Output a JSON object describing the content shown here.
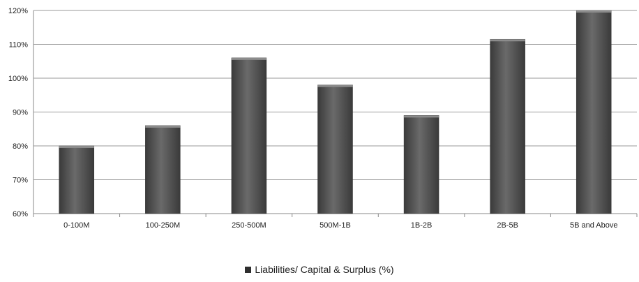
{
  "chart_data": {
    "type": "bar",
    "title": "",
    "xlabel": "",
    "ylabel": "",
    "categories": [
      "0-100M",
      "100-250M",
      "250-500M",
      "500M-1B",
      "1B-2B",
      "2B-5B",
      "5B and Above"
    ],
    "series": [
      {
        "name": "Liabilities/ Capital & Surplus (%)",
        "values": [
          80,
          86,
          106,
          98,
          89,
          111.5,
          120
        ]
      }
    ],
    "ylim": [
      60,
      120
    ],
    "yticks": [
      60,
      70,
      80,
      90,
      100,
      110,
      120
    ],
    "ytick_labels": [
      "60%",
      "70%",
      "80%",
      "90%",
      "100%",
      "110%",
      "120%"
    ],
    "grid": true,
    "legend_position": "bottom",
    "bar_color": "#5a5a5a"
  }
}
